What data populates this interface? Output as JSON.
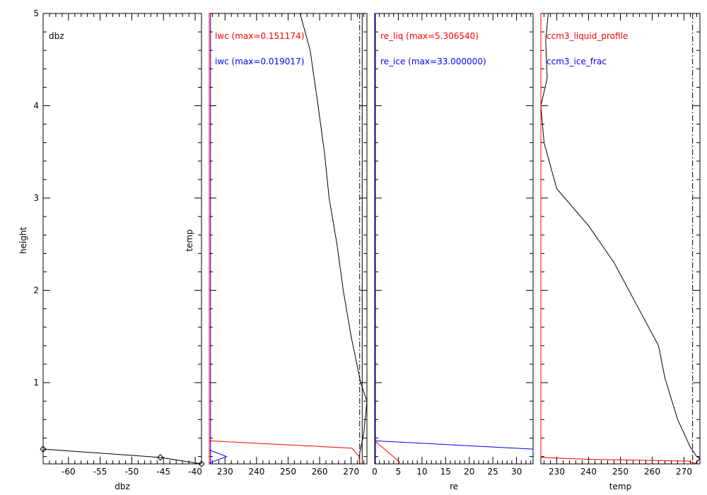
{
  "chart_data": [
    {
      "type": "line",
      "panel": "dbz",
      "xlabel": "dbz",
      "ylabel": "height",
      "xlim": [
        -64,
        -39
      ],
      "ylim": [
        0.12,
        5.0
      ],
      "x_ticks": [
        "-60",
        "-55",
        "-50",
        "-45",
        "-40"
      ],
      "x_tick_values": [
        -60,
        -55,
        -50,
        -45,
        -40
      ],
      "y_ticks": [
        "1",
        "2",
        "3",
        "4",
        "5"
      ],
      "y_tick_values": [
        1,
        2,
        3,
        4,
        5
      ],
      "labels": [
        {
          "text": "dbz",
          "color": "#000000"
        }
      ],
      "series": [
        {
          "color": "#000000",
          "markers": true,
          "points": [
            [
              -64,
              0.28
            ],
            [
              -45.5,
              0.19
            ],
            [
              -39,
              0.12
            ]
          ]
        }
      ]
    },
    {
      "type": "line",
      "panel": "lwc_iwc",
      "xlabel": "",
      "ylabel": "temp",
      "xlim": [
        225,
        275
      ],
      "ylim": [
        0.12,
        5.0
      ],
      "x_ticks": [
        "230",
        "240",
        "250",
        "260",
        "270"
      ],
      "x_tick_values": [
        230,
        240,
        250,
        260,
        270
      ],
      "labels": [
        {
          "text": "lwc (max=0.151174)",
          "color": "#ff0000"
        },
        {
          "text": "iwc (max=0.019017)",
          "color": "#0000ff"
        }
      ],
      "reference_lines": [
        {
          "x": 272.7,
          "style": "dashdot",
          "color": "#000000"
        },
        {
          "x": 273.5,
          "style": "solid",
          "color": "#000000"
        }
      ],
      "series": [
        {
          "color": "#000000",
          "points": [
            [
              253.8,
              5.0
            ],
            [
              257,
              4.6
            ],
            [
              259.5,
              4.0
            ],
            [
              261.5,
              3.5
            ],
            [
              263,
              3.0
            ],
            [
              265.5,
              2.5
            ],
            [
              267.5,
              2.0
            ],
            [
              270,
              1.5
            ],
            [
              273,
              1.0
            ],
            [
              275,
              0.8
            ],
            [
              274,
              0.45
            ],
            [
              272.5,
              0.2
            ],
            [
              272.7,
              0.12
            ]
          ]
        },
        {
          "color": "#ff0000",
          "points": [
            [
              225,
              0.37
            ],
            [
              270.2,
              0.29
            ],
            [
              272.5,
              0.2
            ],
            [
              272.8,
              0.12
            ]
          ]
        },
        {
          "color": "#0000ff",
          "points": [
            [
              225,
              0.12
            ],
            [
              225,
              0.27
            ],
            [
              230.5,
              0.2
            ],
            [
              225,
              0.13
            ]
          ]
        },
        {
          "color": "#ff0000",
          "points": [
            [
              225,
              0.12
            ],
            [
              225,
              5.0
            ]
          ]
        },
        {
          "color": "#0000ff",
          "points": [
            [
              225.4,
              0.12
            ],
            [
              225.4,
              5.0
            ]
          ]
        }
      ]
    },
    {
      "type": "line",
      "panel": "re",
      "xlabel": "re",
      "ylabel": "",
      "xlim": [
        0,
        33.5
      ],
      "ylim": [
        0.12,
        5.0
      ],
      "x_ticks": [
        "0",
        "5",
        "10",
        "15",
        "20",
        "25",
        "30"
      ],
      "x_tick_values": [
        0,
        5,
        10,
        15,
        20,
        25,
        30
      ],
      "labels": [
        {
          "text": "re_liq (max=5.306540)",
          "color": "#ff0000"
        },
        {
          "text": "re_ice (max=33.000000)",
          "color": "#0000ff"
        }
      ],
      "series": [
        {
          "color": "#0000ff",
          "points": [
            [
              0,
              0.37
            ],
            [
              33.5,
              0.28
            ]
          ]
        },
        {
          "color": "#ff0000",
          "points": [
            [
              0,
              0.37
            ],
            [
              5.3,
              0.14
            ],
            [
              5.3,
              0.12
            ]
          ]
        },
        {
          "color": "#0000ff",
          "points": [
            [
              0.15,
              0.12
            ],
            [
              0.15,
              5.0
            ]
          ]
        }
      ]
    },
    {
      "type": "line",
      "panel": "ccm3",
      "xlabel": "temp",
      "ylabel": "",
      "xlim": [
        225,
        275
      ],
      "ylim": [
        0.12,
        5.0
      ],
      "x_ticks": [
        "230",
        "240",
        "250",
        "260",
        "270"
      ],
      "x_tick_values": [
        230,
        240,
        250,
        260,
        270
      ],
      "labels": [
        {
          "text": "ccm3_liquid_profile",
          "color": "#ff0000"
        },
        {
          "text": "ccm3_ice_frac",
          "color": "#0000ff"
        }
      ],
      "reference_lines": [
        {
          "x": 272.7,
          "style": "dashdot",
          "color": "#000000"
        }
      ],
      "series": [
        {
          "color": "#000000",
          "points": [
            [
              227.3,
              5.0
            ],
            [
              226.5,
              4.7
            ],
            [
              227,
              4.3
            ],
            [
              225,
              4.0
            ],
            [
              226,
              3.6
            ],
            [
              230,
              3.1
            ],
            [
              240,
              2.7
            ],
            [
              248,
              2.3
            ],
            [
              255,
              1.85
            ],
            [
              262,
              1.4
            ],
            [
              264,
              1.05
            ],
            [
              268,
              0.6
            ],
            [
              272,
              0.3
            ],
            [
              274,
              0.2
            ],
            [
              275,
              0.18
            ],
            [
              273.5,
              0.12
            ]
          ]
        },
        {
          "color": "#ff0000",
          "points": [
            [
              225,
              5.0
            ],
            [
              225,
              0.19
            ],
            [
              240,
              0.17
            ],
            [
              271.5,
              0.15
            ],
            [
              274,
              0.12
            ]
          ]
        }
      ]
    }
  ]
}
